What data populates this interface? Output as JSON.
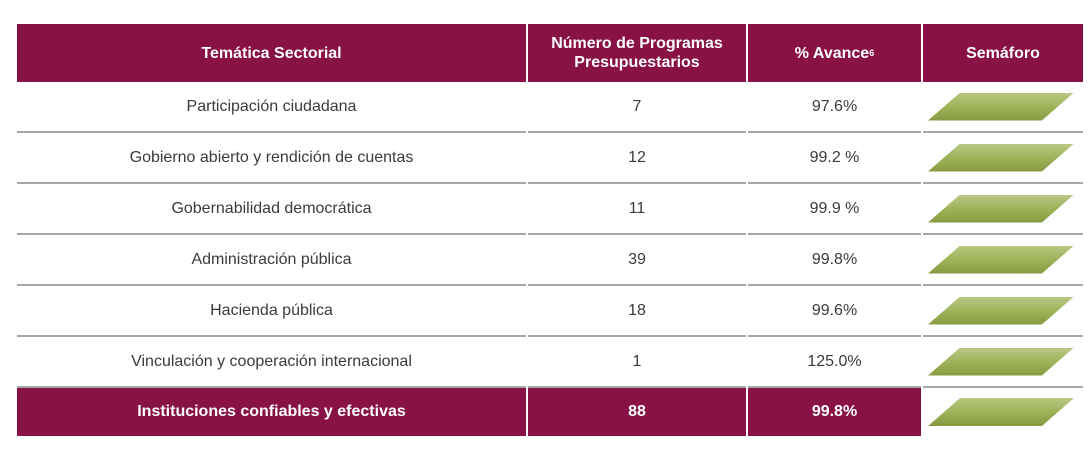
{
  "header": {
    "col1": "Temática Sectorial",
    "col2": "Número de Programas Presupuestarios",
    "col3": "% Avance",
    "col3_sup": "6",
    "col4": "Semáforo"
  },
  "rows": [
    {
      "tematica": "Participación ciudadana",
      "programas": "7",
      "avance": "97.6%"
    },
    {
      "tematica": "Gobierno abierto y rendición de cuentas",
      "programas": "12",
      "avance": "99.2 %"
    },
    {
      "tematica": "Gobernabilidad democrática",
      "programas": "11",
      "avance": "99.9 %"
    },
    {
      "tematica": "Administración pública",
      "programas": "39",
      "avance": "99.8%"
    },
    {
      "tematica": "Hacienda pública",
      "programas": "18",
      "avance": "99.6%"
    },
    {
      "tematica": "Vinculación y cooperación internacional",
      "programas": "1",
      "avance": "125.0%"
    }
  ],
  "total": {
    "tematica": "Instituciones confiables y efectivas",
    "programas": "88",
    "avance": "99.8%"
  },
  "semaforo_color": "#9bb055",
  "header_color": "#881146"
}
